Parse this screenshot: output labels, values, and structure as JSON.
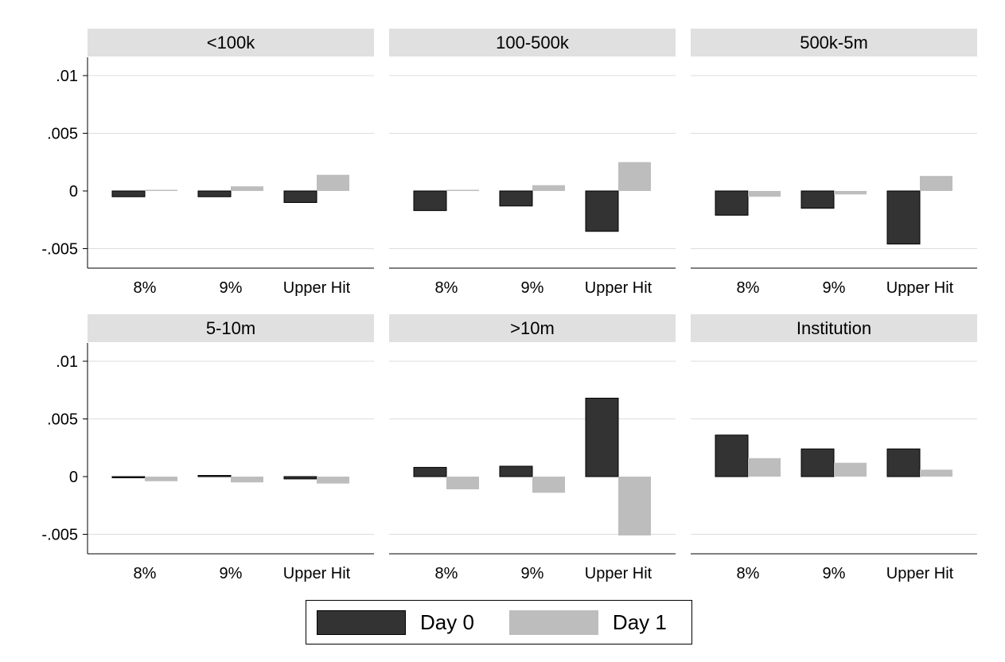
{
  "chart_data": {
    "type": "bar",
    "categories": [
      "8%",
      "9%",
      "Upper Hit"
    ],
    "y_ticks": [
      ".01",
      ".005",
      "0",
      "-.005"
    ],
    "y_tick_values": [
      0.01,
      0.005,
      0,
      -0.005
    ],
    "ylim": [
      -0.0067,
      0.0115
    ],
    "grid": true,
    "legend_position": "bottom-center",
    "series_names": [
      "Day 0",
      "Day 1"
    ],
    "colors": {
      "day0": "#333333",
      "day1": "#bdbdbd",
      "panel_header": "#e0e0e0",
      "grid": "#dddddd"
    },
    "panels": [
      {
        "title": "<100k",
        "series": [
          {
            "name": "Day 0",
            "values": [
              -0.0005,
              -0.0005,
              -0.001
            ]
          },
          {
            "name": "Day 1",
            "values": [
              0.0001,
              0.0004,
              0.0014
            ]
          }
        ]
      },
      {
        "title": "100-500k",
        "series": [
          {
            "name": "Day 0",
            "values": [
              -0.0017,
              -0.0013,
              -0.0035
            ]
          },
          {
            "name": "Day 1",
            "values": [
              0.0001,
              0.0005,
              0.0025
            ]
          }
        ]
      },
      {
        "title": "500k-5m",
        "series": [
          {
            "name": "Day 0",
            "values": [
              -0.0021,
              -0.0015,
              -0.0046
            ]
          },
          {
            "name": "Day 1",
            "values": [
              -0.0005,
              -0.0003,
              0.0013
            ]
          }
        ]
      },
      {
        "title": "5-10m",
        "series": [
          {
            "name": "Day 0",
            "values": [
              -0.0001,
              0.0001,
              -0.0002
            ]
          },
          {
            "name": "Day 1",
            "values": [
              -0.0004,
              -0.0005,
              -0.0006
            ]
          }
        ]
      },
      {
        "title": ">10m",
        "series": [
          {
            "name": "Day 0",
            "values": [
              0.0008,
              0.0009,
              0.0068
            ]
          },
          {
            "name": "Day 1",
            "values": [
              -0.0011,
              -0.0014,
              -0.0051
            ]
          }
        ]
      },
      {
        "title": "Institution",
        "series": [
          {
            "name": "Day 0",
            "values": [
              0.0036,
              0.0024,
              0.0024
            ]
          },
          {
            "name": "Day 1",
            "values": [
              0.0016,
              0.0012,
              0.0006
            ]
          }
        ]
      }
    ]
  }
}
